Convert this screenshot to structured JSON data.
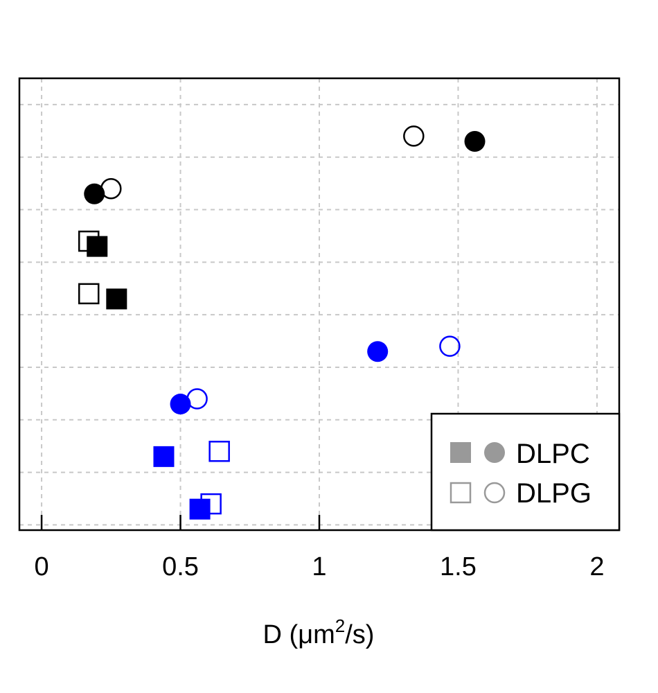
{
  "chart_data": {
    "type": "scatter",
    "title": "",
    "xlabel": {
      "prefix": "D (",
      "mu": "μ",
      "unit": "m",
      "sup": "2",
      "suffix": "/s)"
    },
    "ylabel": "",
    "xlim": [
      -0.08,
      2.08
    ],
    "ylim": [
      0.4,
      9.0
    ],
    "x_ticks": [
      "0",
      "0.5",
      "1",
      "1.5",
      "2"
    ],
    "grid": true,
    "legend_placement": "bottom-right",
    "legend": [
      {
        "label": "DLPC",
        "style": "filled",
        "color": "#999999"
      },
      {
        "label": "DLPG",
        "style": "open",
        "color": "#999999"
      }
    ],
    "colors": {
      "black": "#000000",
      "blue": "#0000ff"
    },
    "points": [
      {
        "x": 1.56,
        "y": 7.8,
        "shape": "circle",
        "filled": true,
        "color": "black"
      },
      {
        "x": 1.34,
        "y": 7.9,
        "shape": "circle",
        "filled": false,
        "color": "black"
      },
      {
        "x": 0.19,
        "y": 6.8,
        "shape": "circle",
        "filled": true,
        "color": "black"
      },
      {
        "x": 0.25,
        "y": 6.9,
        "shape": "circle",
        "filled": false,
        "color": "black"
      },
      {
        "x": 0.2,
        "y": 5.8,
        "shape": "square",
        "filled": true,
        "color": "black"
      },
      {
        "x": 0.17,
        "y": 5.9,
        "shape": "square",
        "filled": false,
        "color": "black"
      },
      {
        "x": 0.27,
        "y": 4.8,
        "shape": "square",
        "filled": true,
        "color": "black"
      },
      {
        "x": 0.17,
        "y": 4.9,
        "shape": "square",
        "filled": false,
        "color": "black"
      },
      {
        "x": 1.21,
        "y": 3.8,
        "shape": "circle",
        "filled": true,
        "color": "blue"
      },
      {
        "x": 1.47,
        "y": 3.9,
        "shape": "circle",
        "filled": false,
        "color": "blue"
      },
      {
        "x": 0.5,
        "y": 2.8,
        "shape": "circle",
        "filled": true,
        "color": "blue"
      },
      {
        "x": 0.56,
        "y": 2.9,
        "shape": "circle",
        "filled": false,
        "color": "blue"
      },
      {
        "x": 0.44,
        "y": 1.8,
        "shape": "square",
        "filled": true,
        "color": "blue"
      },
      {
        "x": 0.64,
        "y": 1.9,
        "shape": "square",
        "filled": false,
        "color": "blue"
      },
      {
        "x": 0.57,
        "y": 0.8,
        "shape": "square",
        "filled": true,
        "color": "blue"
      },
      {
        "x": 0.61,
        "y": 0.9,
        "shape": "square",
        "filled": false,
        "color": "blue"
      }
    ]
  }
}
